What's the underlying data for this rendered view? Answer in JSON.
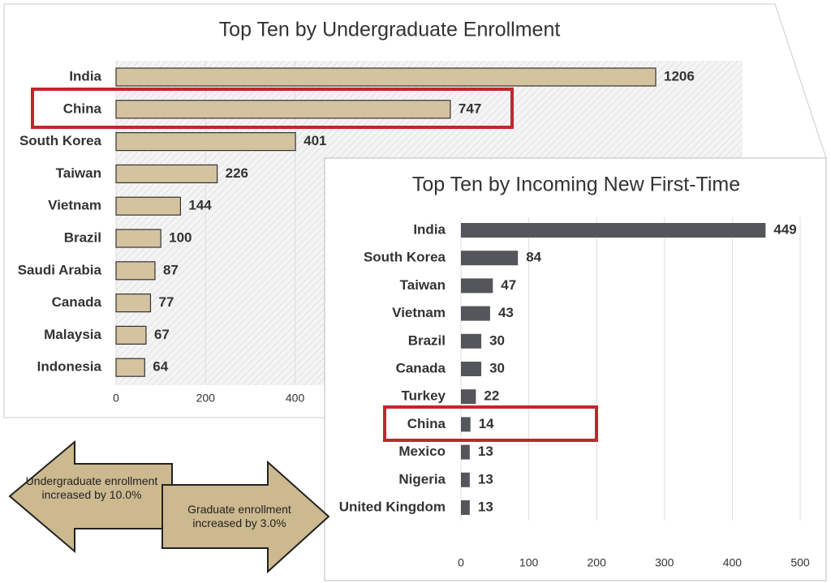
{
  "chart_data": [
    {
      "type": "hbar",
      "title": "Top Ten by Undergraduate Enrollment",
      "categories": [
        "India",
        "China",
        "South Korea",
        "Taiwan",
        "Vietnam",
        "Brazil",
        "Saudi Arabia",
        "Canada",
        "Malaysia",
        "Indonesia"
      ],
      "values": [
        1206,
        747,
        401,
        226,
        144,
        100,
        87,
        77,
        67,
        64
      ],
      "color": "#d5c3a0",
      "xlim": [
        0,
        1400
      ],
      "xticks": [
        0,
        200,
        400
      ],
      "grid": true
    },
    {
      "type": "hbar",
      "title": "Top Ten by Incoming New First-Time",
      "categories": [
        "India",
        "South Korea",
        "Taiwan",
        "Vietnam",
        "Brazil",
        "Canada",
        "Turkey",
        "China",
        "Mexico",
        "Nigeria",
        "United Kingdom"
      ],
      "values": [
        449,
        84,
        47,
        43,
        30,
        30,
        22,
        14,
        13,
        13,
        13
      ],
      "color": "#54565b",
      "xlim": [
        0,
        500
      ],
      "xticks": [
        0,
        100,
        200,
        300,
        400,
        500
      ],
      "grid": true
    }
  ],
  "annotations": [
    "Undergraduate enrollment increased by 10.0%",
    "Graduate enrollment increased by 3.0%"
  ]
}
